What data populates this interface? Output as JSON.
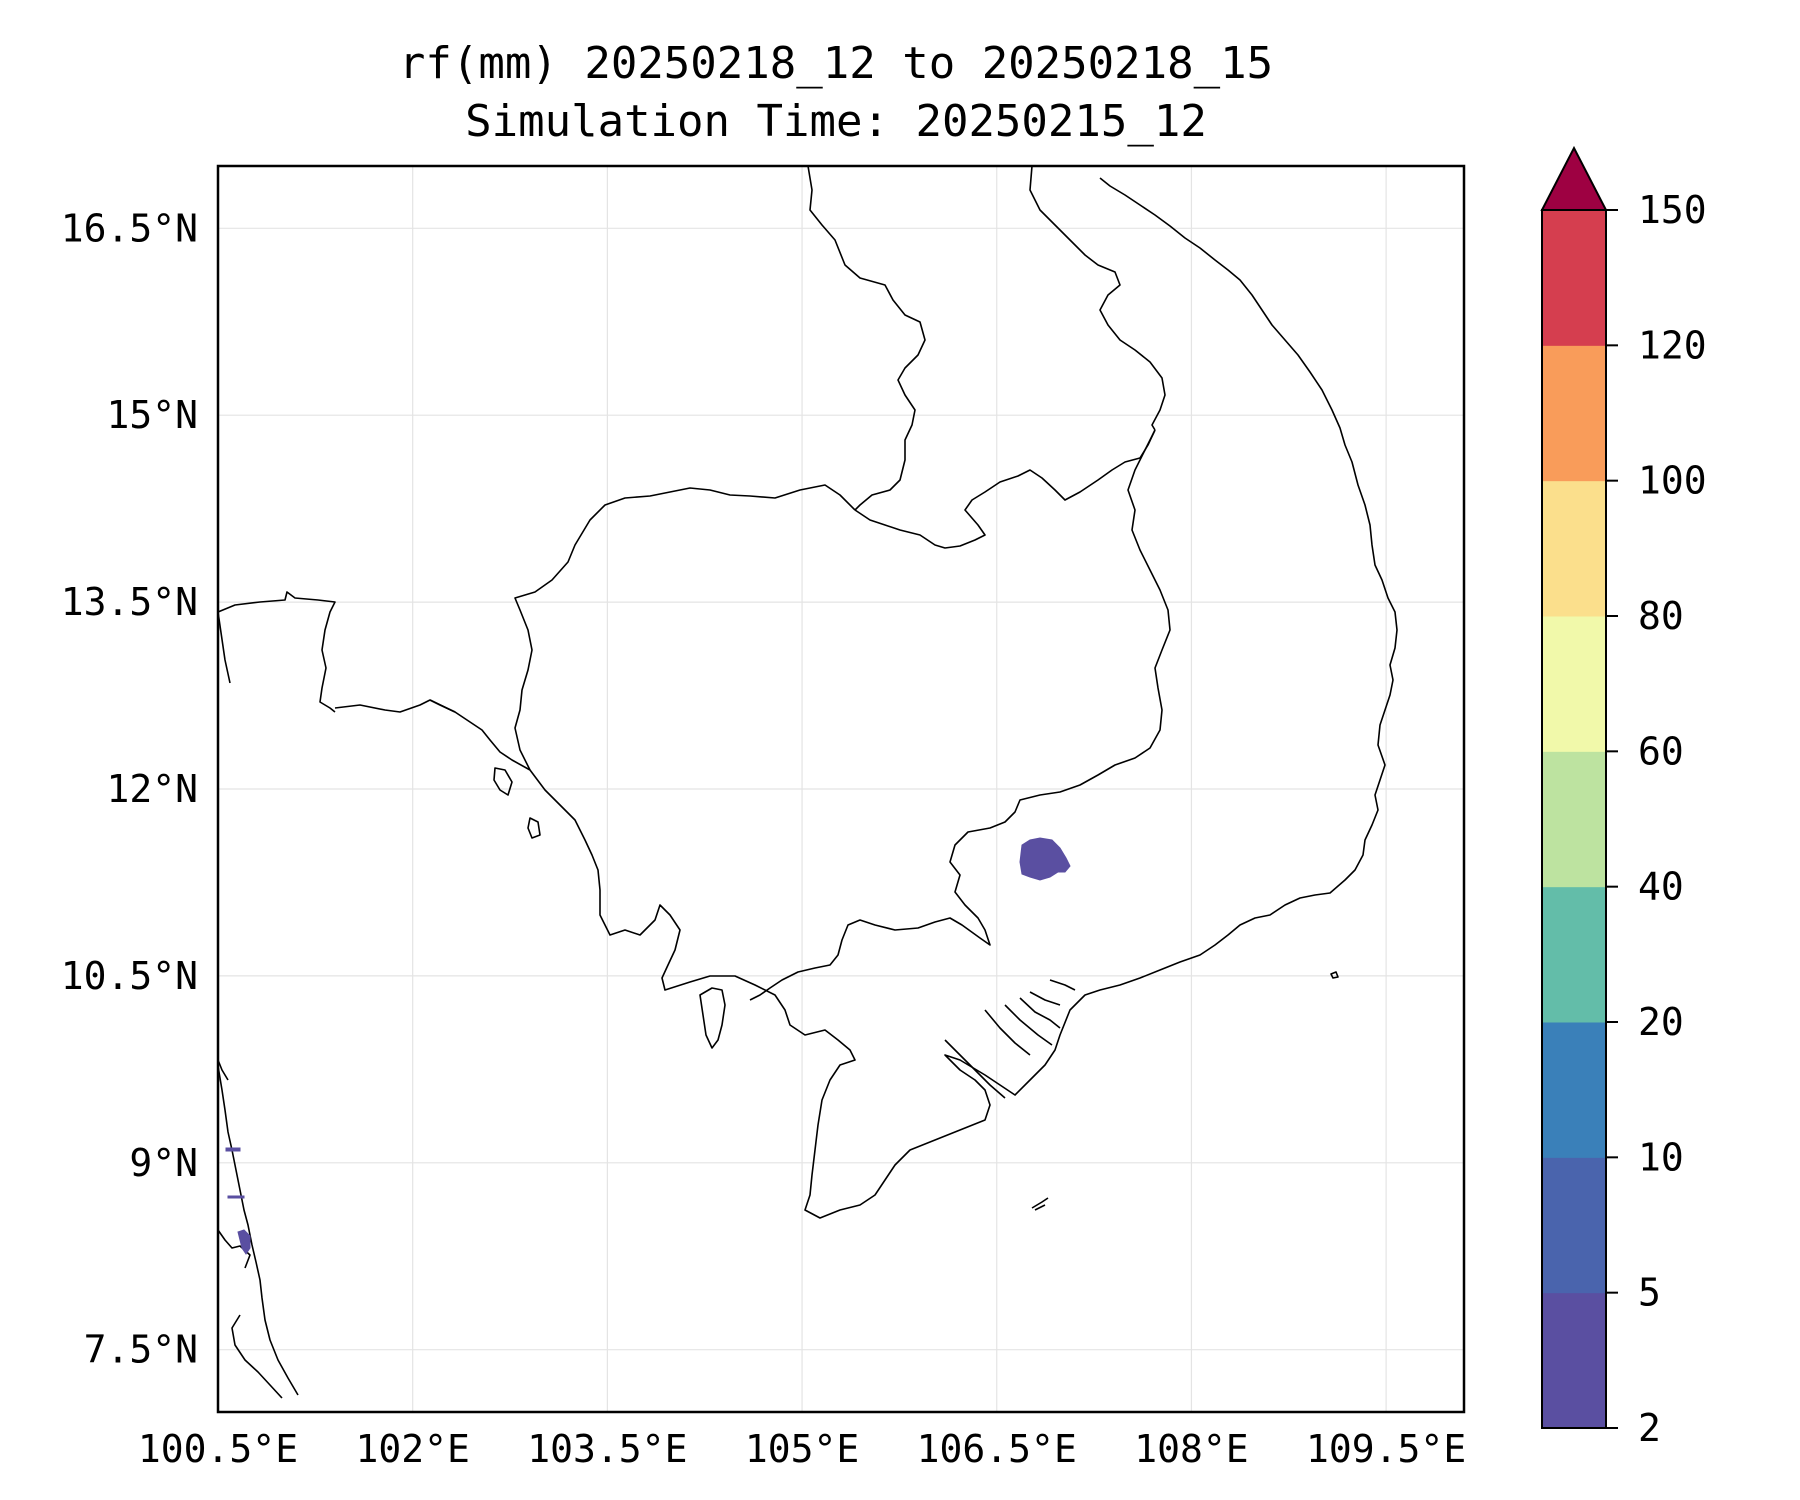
{
  "title": {
    "line1": "rf(mm) 20250218_12 to 20250218_15",
    "line2": "Simulation Time: 20250215_12"
  },
  "map": {
    "lon_ticks": [
      {
        "value": 100.5,
        "label": "100.5°E"
      },
      {
        "value": 102.0,
        "label": "102°E"
      },
      {
        "value": 103.5,
        "label": "103.5°E"
      },
      {
        "value": 105.0,
        "label": "105°E"
      },
      {
        "value": 106.5,
        "label": "106.5°E"
      },
      {
        "value": 108.0,
        "label": "108°E"
      },
      {
        "value": 109.5,
        "label": "109.5°E"
      }
    ],
    "lat_ticks": [
      {
        "value": 16.5,
        "label": "16.5°N"
      },
      {
        "value": 15.0,
        "label": "15°N"
      },
      {
        "value": 13.5,
        "label": "13.5°N"
      },
      {
        "value": 12.0,
        "label": "12°N"
      },
      {
        "value": 10.5,
        "label": "10.5°N"
      },
      {
        "value": 9.0,
        "label": "9°N"
      },
      {
        "value": 7.5,
        "label": "7.5°N"
      }
    ],
    "lon_range": [
      100.5,
      110.1
    ],
    "lat_range": [
      7.0,
      17.0
    ],
    "grid": true,
    "rain_cells": [
      {
        "lon": 106.65,
        "lat": 11.45,
        "level": "2-5 mm"
      },
      {
        "lon": 100.7,
        "lat": 8.5,
        "level": "2-5 mm"
      },
      {
        "lon": 100.62,
        "lat": 9.16,
        "level": "2-5 mm"
      },
      {
        "lon": 100.62,
        "lat": 8.77,
        "level": "2-5 mm"
      }
    ]
  },
  "colorbar": {
    "levels": [
      {
        "label": "2",
        "color": "#5a4fa1"
      },
      {
        "label": "5",
        "color": "#4a64ad"
      },
      {
        "label": "10",
        "color": "#3a80b9"
      },
      {
        "label": "20",
        "color": "#63bda9"
      },
      {
        "label": "40",
        "color": "#bde3a0"
      },
      {
        "label": "60",
        "color": "#f1f9aa"
      },
      {
        "label": "80",
        "color": "#fbdf8c"
      },
      {
        "label": "100",
        "color": "#f99c5a"
      },
      {
        "label": "120",
        "color": "#d53e4f"
      },
      {
        "label": "150",
        "color": "#9e0142"
      }
    ],
    "extend": "max"
  }
}
